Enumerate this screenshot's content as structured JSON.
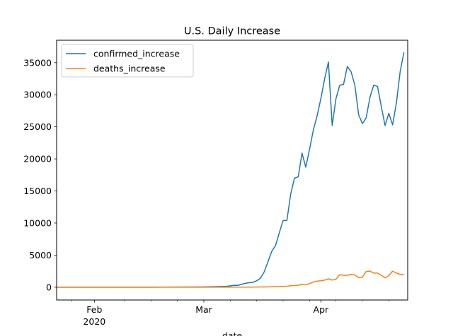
{
  "chart_data": {
    "type": "line",
    "title": "U.S. Daily Increase",
    "xlabel": "date",
    "ylabel": "",
    "x_start": "2020-01-22",
    "x_end": "2020-04-24",
    "ylim": [
      -2000,
      38500
    ],
    "y_ticks": [
      0,
      5000,
      10000,
      15000,
      20000,
      25000,
      30000,
      35000
    ],
    "x_major_ticks": [
      {
        "date": "2020-02-01",
        "label": "Feb",
        "sublabel": "2020"
      },
      {
        "date": "2020-03-01",
        "label": "Mar",
        "sublabel": ""
      },
      {
        "date": "2020-04-01",
        "label": "Apr",
        "sublabel": ""
      }
    ],
    "x_minor_ticks": [
      "2020-01-26",
      "2020-02-09",
      "2020-02-16",
      "2020-02-23",
      "2020-03-08",
      "2020-03-15",
      "2020-03-22",
      "2020-03-29",
      "2020-04-05",
      "2020-04-12",
      "2020-04-19"
    ],
    "legend_position": "top-left",
    "grid": false,
    "series": [
      {
        "name": "confirmed_increase",
        "color": "#1f77b4",
        "points": [
          [
            "2020-01-22",
            0
          ],
          [
            "2020-02-01",
            0
          ],
          [
            "2020-02-15",
            0
          ],
          [
            "2020-02-25",
            20
          ],
          [
            "2020-03-01",
            40
          ],
          [
            "2020-03-03",
            60
          ],
          [
            "2020-03-05",
            90
          ],
          [
            "2020-03-07",
            130
          ],
          [
            "2020-03-08",
            200
          ],
          [
            "2020-03-09",
            300
          ],
          [
            "2020-03-10",
            280
          ],
          [
            "2020-03-11",
            450
          ],
          [
            "2020-03-12",
            600
          ],
          [
            "2020-03-13",
            700
          ],
          [
            "2020-03-14",
            750
          ],
          [
            "2020-03-15",
            1000
          ],
          [
            "2020-03-16",
            1400
          ],
          [
            "2020-03-17",
            2400
          ],
          [
            "2020-03-18",
            4000
          ],
          [
            "2020-03-19",
            5600
          ],
          [
            "2020-03-20",
            6500
          ],
          [
            "2020-03-21",
            8500
          ],
          [
            "2020-03-22",
            10400
          ],
          [
            "2020-03-23",
            10400
          ],
          [
            "2020-03-24",
            14500
          ],
          [
            "2020-03-25",
            17000
          ],
          [
            "2020-03-26",
            17200
          ],
          [
            "2020-03-27",
            20900
          ],
          [
            "2020-03-28",
            18700
          ],
          [
            "2020-03-29",
            21500
          ],
          [
            "2020-03-30",
            24500
          ],
          [
            "2020-03-31",
            26700
          ],
          [
            "2020-04-01",
            29400
          ],
          [
            "2020-04-02",
            32500
          ],
          [
            "2020-04-03",
            35100
          ],
          [
            "2020-04-04",
            25200
          ],
          [
            "2020-04-05",
            29400
          ],
          [
            "2020-04-06",
            31500
          ],
          [
            "2020-04-07",
            31600
          ],
          [
            "2020-04-08",
            34400
          ],
          [
            "2020-04-09",
            33600
          ],
          [
            "2020-04-10",
            31500
          ],
          [
            "2020-04-11",
            26900
          ],
          [
            "2020-04-12",
            25500
          ],
          [
            "2020-04-13",
            26400
          ],
          [
            "2020-04-14",
            29600
          ],
          [
            "2020-04-15",
            31500
          ],
          [
            "2020-04-16",
            31300
          ],
          [
            "2020-04-17",
            28200
          ],
          [
            "2020-04-18",
            25200
          ],
          [
            "2020-04-19",
            27100
          ],
          [
            "2020-04-20",
            25300
          ],
          [
            "2020-04-21",
            28700
          ],
          [
            "2020-04-22",
            33600
          ],
          [
            "2020-04-23",
            36600
          ]
        ]
      },
      {
        "name": "deaths_increase",
        "color": "#ff7f0e",
        "points": [
          [
            "2020-01-22",
            0
          ],
          [
            "2020-03-01",
            0
          ],
          [
            "2020-03-10",
            5
          ],
          [
            "2020-03-13",
            10
          ],
          [
            "2020-03-15",
            20
          ],
          [
            "2020-03-17",
            40
          ],
          [
            "2020-03-19",
            60
          ],
          [
            "2020-03-20",
            80
          ],
          [
            "2020-03-21",
            100
          ],
          [
            "2020-03-22",
            120
          ],
          [
            "2020-03-23",
            150
          ],
          [
            "2020-03-24",
            230
          ],
          [
            "2020-03-25",
            250
          ],
          [
            "2020-03-26",
            300
          ],
          [
            "2020-03-27",
            450
          ],
          [
            "2020-03-28",
            400
          ],
          [
            "2020-03-29",
            550
          ],
          [
            "2020-03-30",
            800
          ],
          [
            "2020-03-31",
            950
          ],
          [
            "2020-04-01",
            1000
          ],
          [
            "2020-04-02",
            1100
          ],
          [
            "2020-04-03",
            1300
          ],
          [
            "2020-04-04",
            1100
          ],
          [
            "2020-04-05",
            1250
          ],
          [
            "2020-04-06",
            1950
          ],
          [
            "2020-04-07",
            1850
          ],
          [
            "2020-04-08",
            1850
          ],
          [
            "2020-04-09",
            2000
          ],
          [
            "2020-04-10",
            1900
          ],
          [
            "2020-04-11",
            1500
          ],
          [
            "2020-04-12",
            1550
          ],
          [
            "2020-04-13",
            2450
          ],
          [
            "2020-04-14",
            2500
          ],
          [
            "2020-04-15",
            2200
          ],
          [
            "2020-04-16",
            2200
          ],
          [
            "2020-04-17",
            1850
          ],
          [
            "2020-04-18",
            1450
          ],
          [
            "2020-04-19",
            1800
          ],
          [
            "2020-04-20",
            2500
          ],
          [
            "2020-04-21",
            2200
          ],
          [
            "2020-04-22",
            2000
          ],
          [
            "2020-04-23",
            1950
          ]
        ]
      }
    ]
  }
}
